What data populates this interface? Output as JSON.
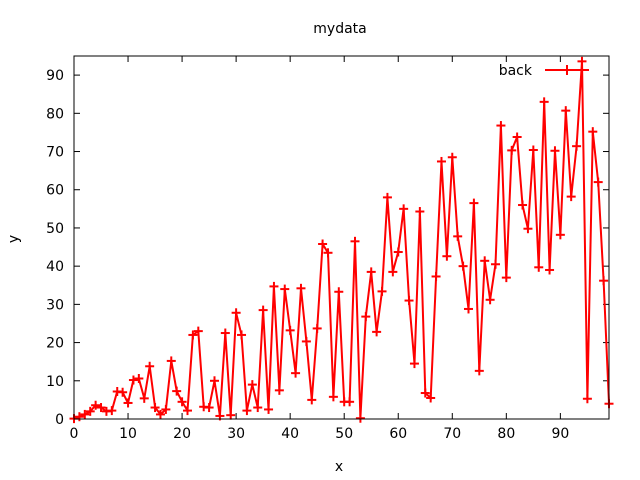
{
  "chart_data": {
    "type": "line",
    "title": "mydata",
    "xlabel": "x",
    "ylabel": "y",
    "xlim": [
      0,
      99
    ],
    "ylim": [
      0,
      95
    ],
    "xticks": [
      0,
      10,
      20,
      30,
      40,
      50,
      60,
      70,
      80,
      90
    ],
    "yticks": [
      0,
      10,
      20,
      30,
      40,
      50,
      60,
      70,
      80,
      90
    ],
    "grid": false,
    "legend_position": "top-right",
    "series": [
      {
        "name": "back",
        "color": "#ff0000",
        "marker": "plus",
        "x": [
          0,
          1,
          2,
          3,
          4,
          5,
          6,
          7,
          8,
          9,
          10,
          11,
          12,
          13,
          14,
          15,
          16,
          17,
          18,
          19,
          20,
          21,
          22,
          23,
          24,
          25,
          26,
          27,
          28,
          29,
          30,
          31,
          32,
          33,
          34,
          35,
          36,
          37,
          38,
          39,
          40,
          41,
          42,
          43,
          44,
          45,
          46,
          47,
          48,
          49,
          50,
          51,
          52,
          53,
          54,
          55,
          56,
          57,
          58,
          59,
          60,
          61,
          62,
          63,
          64,
          65,
          66,
          67,
          68,
          69,
          70,
          71,
          72,
          73,
          74,
          75,
          76,
          77,
          78,
          79,
          80,
          81,
          82,
          83,
          84,
          85,
          86,
          87,
          88,
          89,
          90,
          91,
          92,
          93,
          94,
          95,
          96,
          97,
          98,
          99
        ],
        "y": [
          0.1,
          0.6,
          1.2,
          2.0,
          3.6,
          3.0,
          2.0,
          2.2,
          7.2,
          7.0,
          4.2,
          10.2,
          10.6,
          5.4,
          13.8,
          3.0,
          1.2,
          2.5,
          15.2,
          7.3,
          4.5,
          2.2,
          22.0,
          23.0,
          3.2,
          3.0,
          10.0,
          0.8,
          22.5,
          1.0,
          27.8,
          22.0,
          2.2,
          9.0,
          3.0,
          28.5,
          2.5,
          34.7,
          7.5,
          34.0,
          23.2,
          12.0,
          34.2,
          20.3,
          5.0,
          23.7,
          45.8,
          43.5,
          5.8,
          33.3,
          4.5,
          4.5,
          46.5,
          0.2,
          26.8,
          38.5,
          22.8,
          33.4,
          58.0,
          38.5,
          43.7,
          55.0,
          31.0,
          14.5,
          54.3,
          6.8,
          5.5,
          37.3,
          67.4,
          42.6,
          68.5,
          47.8,
          40.0,
          28.8,
          56.5,
          12.6,
          41.4,
          31.2,
          40.5,
          76.8,
          37.0,
          70.3,
          73.8,
          56.0,
          49.8,
          70.4,
          39.7,
          83.0,
          39.0,
          70.2,
          48.2,
          80.7,
          58.2,
          71.4,
          93.6,
          5.3,
          75.2,
          62.0,
          36.2,
          4.0
        ]
      }
    ]
  }
}
